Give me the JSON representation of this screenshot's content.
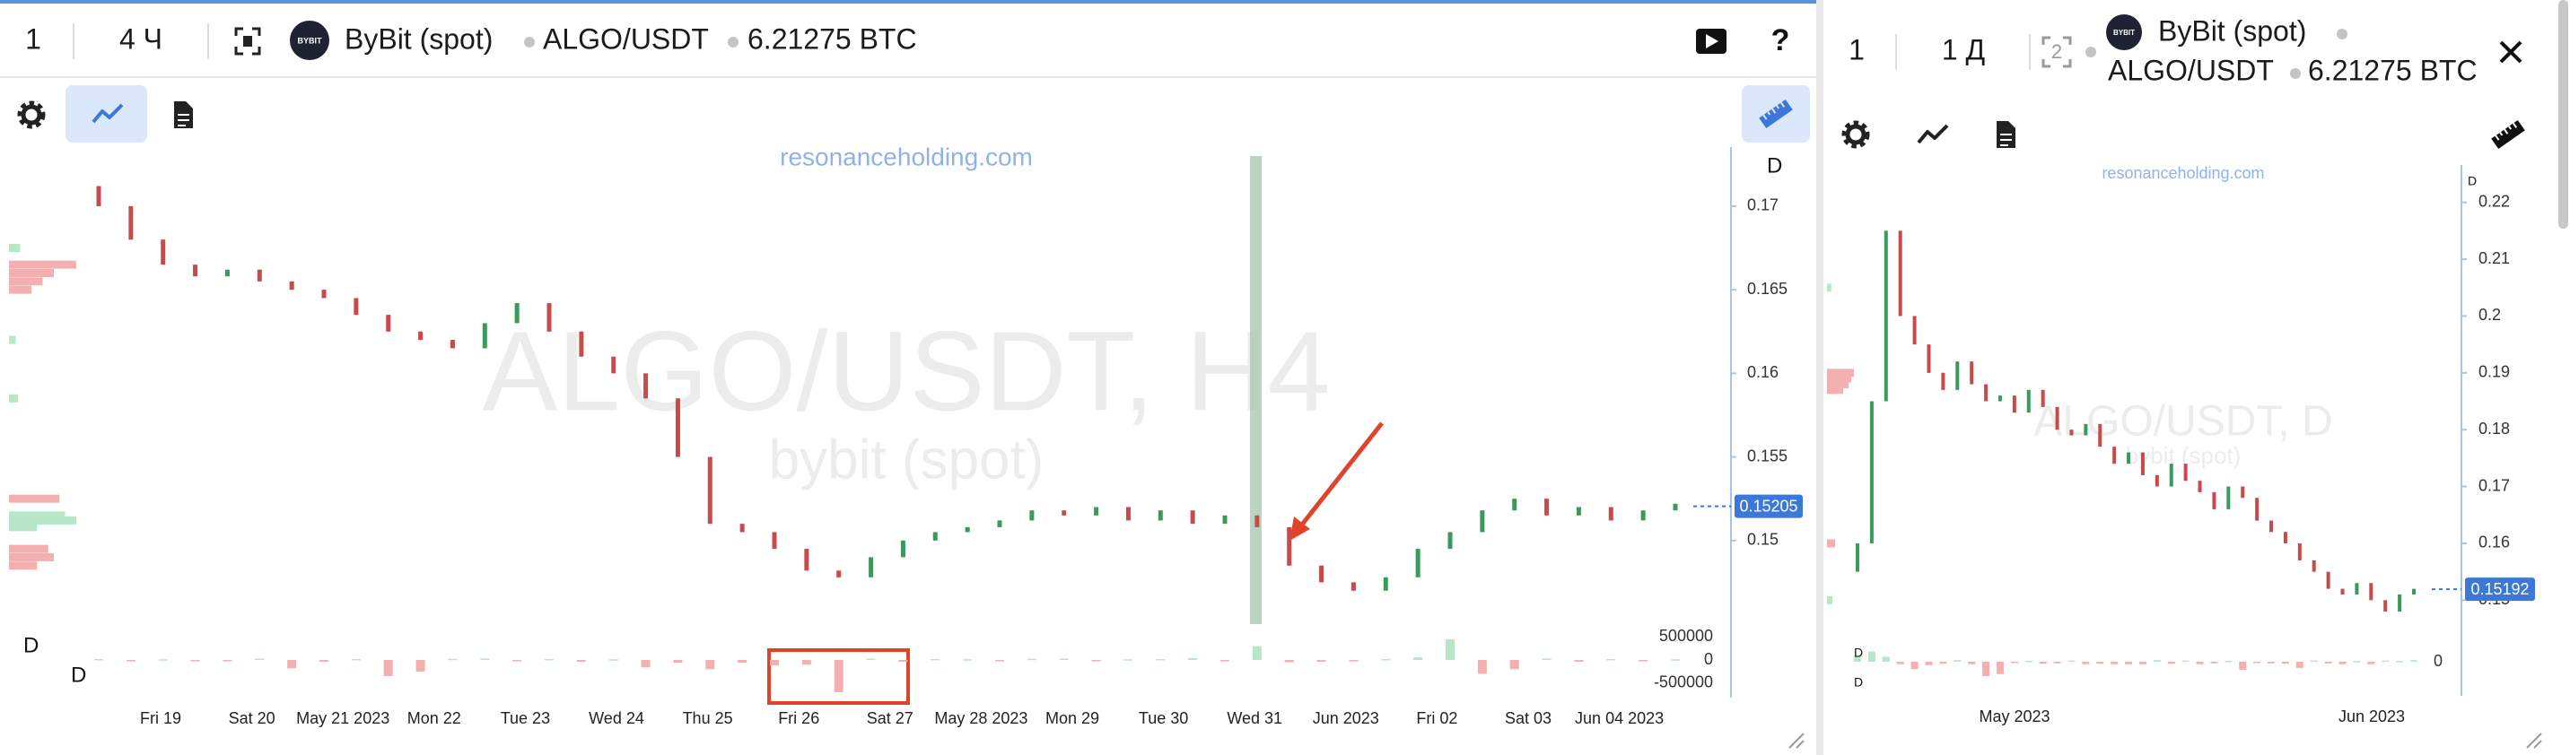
{
  "main_panel": {
    "header": {
      "count": "1",
      "interval": "4 Ч",
      "logo": "BYBIT",
      "exchange": "ByBit (spot)",
      "pair": "ALGO/USDT",
      "balance": "6.21275 BTC",
      "help": "?"
    },
    "watermark_site": "resonanceholding.com",
    "watermark_title": "ALGO/USDT, H4",
    "watermark_subtitle": "bybit (spot)",
    "chart": {
      "type": "candlestick",
      "period_label": "D",
      "up_color": "#3a9a5c",
      "down_color": "#c94a4a",
      "ylim": [
        0.145,
        0.173
      ],
      "yticks": [
        0.15,
        0.155,
        0.16,
        0.165,
        0.17
      ],
      "last_price": 0.15205,
      "x_labels": [
        "Fri 19",
        "Sat 20",
        "May 21 2023",
        "Mon 22",
        "Tue 23",
        "Wed 24",
        "Thu 25",
        "Fri 26",
        "Sat 27",
        "May 28 2023",
        "Mon 29",
        "Tue 30",
        "Wed 31",
        "Jun 2023",
        "Fri 02",
        "Sat 03",
        "Jun 04 2023"
      ],
      "candles": [
        [
          0.1712,
          0.17
        ],
        [
          0.17,
          0.168
        ],
        [
          0.168,
          0.1665
        ],
        [
          0.1665,
          0.1658
        ],
        [
          0.1658,
          0.1662
        ],
        [
          0.1662,
          0.1655
        ],
        [
          0.1655,
          0.165
        ],
        [
          0.165,
          0.1645
        ],
        [
          0.1645,
          0.1635
        ],
        [
          0.1635,
          0.1625
        ],
        [
          0.1625,
          0.162
        ],
        [
          0.162,
          0.1615
        ],
        [
          0.1615,
          0.163
        ],
        [
          0.163,
          0.1642
        ],
        [
          0.1642,
          0.1625
        ],
        [
          0.1625,
          0.161
        ],
        [
          0.161,
          0.16
        ],
        [
          0.16,
          0.1585
        ],
        [
          0.1585,
          0.155
        ],
        [
          0.155,
          0.151
        ],
        [
          0.151,
          0.1505
        ],
        [
          0.1505,
          0.1495
        ],
        [
          0.1495,
          0.1482
        ],
        [
          0.1482,
          0.1478
        ],
        [
          0.1478,
          0.149
        ],
        [
          0.149,
          0.15
        ],
        [
          0.15,
          0.1505
        ],
        [
          0.1505,
          0.1508
        ],
        [
          0.1508,
          0.1512
        ],
        [
          0.1512,
          0.1518
        ],
        [
          0.1518,
          0.1515
        ],
        [
          0.1515,
          0.152
        ],
        [
          0.152,
          0.1512
        ],
        [
          0.1512,
          0.1518
        ],
        [
          0.1518,
          0.151
        ],
        [
          0.151,
          0.1515
        ],
        [
          0.1515,
          0.1508
        ],
        [
          0.1508,
          0.1485
        ],
        [
          0.1485,
          0.1475
        ],
        [
          0.1475,
          0.147
        ],
        [
          0.147,
          0.1478
        ],
        [
          0.1478,
          0.1495
        ],
        [
          0.1495,
          0.1505
        ],
        [
          0.1505,
          0.1518
        ],
        [
          0.1518,
          0.1525
        ],
        [
          0.1525,
          0.1515
        ],
        [
          0.1515,
          0.152
        ],
        [
          0.152,
          0.1512
        ],
        [
          0.1512,
          0.1518
        ],
        [
          0.1518,
          0.1522
        ]
      ],
      "volume": {
        "period_label": "D",
        "ylim": [
          -700000,
          700000
        ],
        "yticks": [
          -500000,
          0,
          500000
        ],
        "up_color": "#b8e6c8",
        "down_color": "#f4b0b0",
        "values": [
          20000,
          -30000,
          15000,
          -20000,
          -25000,
          30000,
          -180000,
          -40000,
          20000,
          -350000,
          -250000,
          25000,
          30000,
          -30000,
          20000,
          -40000,
          15000,
          -160000,
          -60000,
          -200000,
          -60000,
          -120000,
          -100000,
          -700000,
          30000,
          -40000,
          20000,
          15000,
          -20000,
          25000,
          30000,
          -20000,
          15000,
          20000,
          40000,
          -30000,
          300000,
          -50000,
          -40000,
          -30000,
          20000,
          60000,
          450000,
          -300000,
          -200000,
          30000,
          -40000,
          20000,
          -30000,
          15000
        ]
      },
      "volume_profile": {
        "prices": [
          0.1675,
          0.1665,
          0.166,
          0.1655,
          0.165,
          0.162,
          0.1585,
          0.1525,
          0.1515,
          0.1512,
          0.1508,
          0.1495,
          0.149,
          0.1485
        ],
        "values": [
          10000,
          -60000,
          -40000,
          -30000,
          -20000,
          6000,
          8000,
          -45000,
          50000,
          60000,
          25000,
          -35000,
          -40000,
          -25000
        ]
      }
    }
  },
  "side_panel": {
    "header": {
      "count": "1",
      "interval": "1 Д",
      "layout": "2",
      "logo": "BYBIT",
      "exchange": "ByBit (spot)",
      "pair": "ALGO/USDT",
      "balance": "6.21275 BTC"
    },
    "watermark_site": "resonanceholding.com",
    "watermark_title": "ALGO/USDT, D",
    "watermark_subtitle": "bybit (spot)",
    "chart": {
      "type": "candlestick",
      "period_label": "D",
      "up_color": "#3a9a5c",
      "down_color": "#c94a4a",
      "ylim": [
        0.145,
        0.225
      ],
      "yticks": [
        0.15,
        0.16,
        0.17,
        0.18,
        0.19,
        0.2,
        0.21,
        0.22
      ],
      "last_price": 0.15192,
      "x_labels": [
        "May 2023",
        "Jun 2023"
      ],
      "candles": [
        [
          0.155,
          0.16
        ],
        [
          0.16,
          0.185
        ],
        [
          0.185,
          0.215
        ],
        [
          0.215,
          0.2
        ],
        [
          0.2,
          0.195
        ],
        [
          0.195,
          0.19
        ],
        [
          0.19,
          0.187
        ],
        [
          0.187,
          0.192
        ],
        [
          0.192,
          0.188
        ],
        [
          0.188,
          0.185
        ],
        [
          0.185,
          0.186
        ],
        [
          0.186,
          0.183
        ],
        [
          0.183,
          0.187
        ],
        [
          0.187,
          0.184
        ],
        [
          0.184,
          0.18
        ],
        [
          0.18,
          0.179
        ],
        [
          0.179,
          0.181
        ],
        [
          0.181,
          0.177
        ],
        [
          0.177,
          0.174
        ],
        [
          0.174,
          0.176
        ],
        [
          0.176,
          0.172
        ],
        [
          0.172,
          0.17
        ],
        [
          0.17,
          0.174
        ],
        [
          0.174,
          0.171
        ],
        [
          0.171,
          0.169
        ],
        [
          0.169,
          0.166
        ],
        [
          0.166,
          0.17
        ],
        [
          0.17,
          0.168
        ],
        [
          0.168,
          0.164
        ],
        [
          0.164,
          0.162
        ],
        [
          0.162,
          0.16
        ],
        [
          0.16,
          0.157
        ],
        [
          0.157,
          0.155
        ],
        [
          0.155,
          0.152
        ],
        [
          0.152,
          0.151
        ],
        [
          0.151,
          0.153
        ],
        [
          0.153,
          0.15
        ],
        [
          0.15,
          0.148
        ],
        [
          0.148,
          0.151
        ],
        [
          0.151,
          0.152
        ]
      ],
      "volume": {
        "period_label": "D",
        "ylim": [
          -700000,
          700000
        ],
        "yticks": [
          0
        ],
        "up_color": "#b8e6c8",
        "down_color": "#f4b0b0",
        "values": [
          150000,
          250000,
          120000,
          -60000,
          -180000,
          -80000,
          -50000,
          40000,
          -60000,
          -350000,
          -300000,
          -30000,
          20000,
          -50000,
          -40000,
          30000,
          -60000,
          -50000,
          -60000,
          -60000,
          -60000,
          40000,
          -50000,
          30000,
          -60000,
          -40000,
          20000,
          -200000,
          -30000,
          -40000,
          -50000,
          -150000,
          30000,
          -40000,
          -60000,
          20000,
          -60000,
          30000,
          20000,
          40000
        ]
      },
      "volume_profile": {
        "prices": [
          0.205,
          0.19,
          0.189,
          0.188,
          0.187,
          0.16,
          0.15
        ],
        "values": [
          8000,
          -50000,
          -45000,
          -40000,
          -30000,
          -15000,
          10000
        ]
      }
    }
  }
}
